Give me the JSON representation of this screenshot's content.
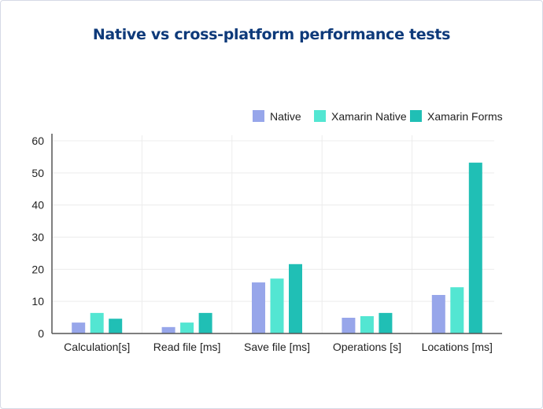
{
  "chart_data": {
    "type": "bar",
    "title": "Native vs cross-platform performance tests",
    "categories": [
      "Calculation[s]",
      "Read file [ms]",
      "Save file [ms]",
      "Operations [s]",
      "Locations [ms]"
    ],
    "series": [
      {
        "name": "Native",
        "color": "#97a6ea",
        "values": [
          3.4,
          2.0,
          15.9,
          4.9,
          12.0
        ]
      },
      {
        "name": "Xamarin Native",
        "color": "#53e6d2",
        "values": [
          6.4,
          3.4,
          17.1,
          5.4,
          14.4
        ]
      },
      {
        "name": "Xamarin Forms",
        "color": "#20bfb5",
        "values": [
          4.6,
          6.4,
          21.6,
          6.4,
          53.2
        ]
      }
    ],
    "ylim": [
      0,
      60
    ],
    "yticks": [
      "0",
      "10",
      "20",
      "30",
      "40",
      "50",
      "60"
    ],
    "grid": true,
    "legend": "top-right"
  }
}
